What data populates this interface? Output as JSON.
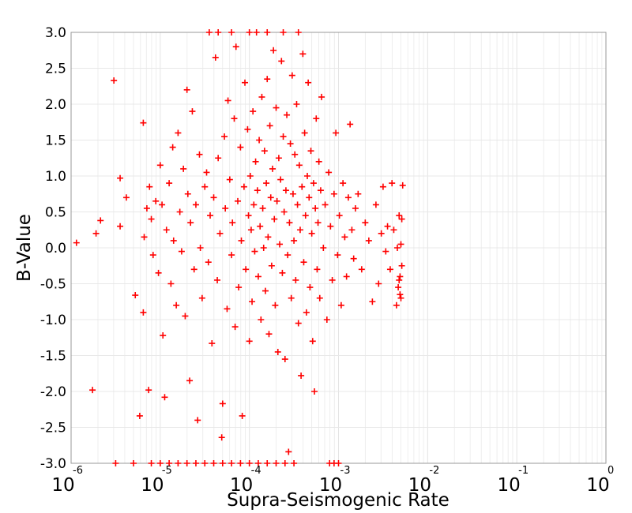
{
  "chart_data": {
    "type": "scatter",
    "title": "",
    "xlabel": "Supra-Seismogenic Rate",
    "ylabel": "B-Value",
    "xscale": "log",
    "xlim_log10": [
      -6,
      0
    ],
    "ylim": [
      -3,
      3
    ],
    "grid": true,
    "marker": "plus",
    "color": "#ff0000",
    "x_tick_exponents": [
      "-6",
      "-5",
      "-4",
      "-3",
      "-2",
      "-1",
      "0"
    ],
    "x_tick_base": "10",
    "y_ticks": [
      "-3.0",
      "-2.5",
      "-2.0",
      "-1.5",
      "-1.0",
      "-0.5",
      "0.0",
      "0.5",
      "1.0",
      "1.5",
      "2.0",
      "2.5",
      "3.0"
    ],
    "points_log10x_y": [
      [
        -5.94,
        0.07
      ],
      [
        -5.76,
        -1.98
      ],
      [
        -5.72,
        0.2
      ],
      [
        -5.67,
        0.38
      ],
      [
        -5.52,
        2.33
      ],
      [
        -5.45,
        0.97
      ],
      [
        -5.45,
        0.3
      ],
      [
        -5.38,
        0.7
      ],
      [
        -5.28,
        -0.66
      ],
      [
        -5.23,
        -2.34
      ],
      [
        -5.19,
        1.74
      ],
      [
        -5.19,
        -0.9
      ],
      [
        -5.13,
        -1.98
      ],
      [
        -5.18,
        0.15
      ],
      [
        -5.15,
        0.55
      ],
      [
        -5.12,
        0.85
      ],
      [
        -5.1,
        0.4
      ],
      [
        -5.08,
        -0.1
      ],
      [
        -5.05,
        0.65
      ],
      [
        -5.02,
        -0.35
      ],
      [
        -5.0,
        1.15
      ],
      [
        -4.98,
        0.6
      ],
      [
        -4.97,
        -1.22
      ],
      [
        -4.95,
        -2.08
      ],
      [
        -4.93,
        0.25
      ],
      [
        -4.9,
        0.9
      ],
      [
        -4.88,
        -0.5
      ],
      [
        -4.86,
        1.4
      ],
      [
        -4.85,
        0.1
      ],
      [
        -4.82,
        -0.8
      ],
      [
        -4.8,
        1.6
      ],
      [
        -4.78,
        0.5
      ],
      [
        -4.76,
        -0.05
      ],
      [
        -4.74,
        1.1
      ],
      [
        -4.72,
        -0.95
      ],
      [
        -4.7,
        2.2
      ],
      [
        -4.69,
        0.75
      ],
      [
        -4.67,
        -1.85
      ],
      [
        -4.66,
        0.35
      ],
      [
        -4.64,
        1.9
      ],
      [
        -4.62,
        -0.3
      ],
      [
        -4.6,
        0.6
      ],
      [
        -4.58,
        -2.4
      ],
      [
        -4.56,
        1.3
      ],
      [
        -4.55,
        0.0
      ],
      [
        -4.53,
        -0.7
      ],
      [
        -4.5,
        0.85
      ],
      [
        -4.48,
        1.05
      ],
      [
        -4.46,
        -0.2
      ],
      [
        -4.44,
        0.45
      ],
      [
        -4.42,
        -1.33
      ],
      [
        -4.4,
        0.7
      ],
      [
        -4.38,
        2.65
      ],
      [
        -4.36,
        -0.45
      ],
      [
        -4.35,
        1.25
      ],
      [
        -4.33,
        0.2
      ],
      [
        -4.31,
        -2.64
      ],
      [
        -4.3,
        -2.17
      ],
      [
        -4.28,
        1.55
      ],
      [
        -4.27,
        0.55
      ],
      [
        -4.25,
        -0.85
      ],
      [
        -4.24,
        2.05
      ],
      [
        -4.22,
        0.95
      ],
      [
        -4.2,
        -0.1
      ],
      [
        -4.19,
        0.35
      ],
      [
        -4.17,
        1.8
      ],
      [
        -4.16,
        -1.1
      ],
      [
        -4.15,
        2.8
      ],
      [
        -4.13,
        0.65
      ],
      [
        -4.12,
        -0.55
      ],
      [
        -4.1,
        1.4
      ],
      [
        -4.09,
        0.1
      ],
      [
        -4.08,
        -2.34
      ],
      [
        -4.06,
        0.85
      ],
      [
        -4.05,
        2.3
      ],
      [
        -4.04,
        -0.3
      ],
      [
        -4.02,
        1.65
      ],
      [
        -4.01,
        0.45
      ],
      [
        -4.0,
        -1.3
      ],
      [
        -3.99,
        1.0
      ],
      [
        -3.98,
        0.25
      ],
      [
        -3.97,
        -0.75
      ],
      [
        -3.96,
        1.9
      ],
      [
        -3.95,
        0.6
      ],
      [
        -3.94,
        -0.05
      ],
      [
        -3.93,
        1.2
      ],
      [
        -3.92,
        3.0
      ],
      [
        -3.91,
        0.8
      ],
      [
        -3.9,
        -0.4
      ],
      [
        -3.89,
        1.5
      ],
      [
        -3.88,
        0.3
      ],
      [
        -3.87,
        -1.0
      ],
      [
        -3.86,
        2.1
      ],
      [
        -3.85,
        0.55
      ],
      [
        -3.84,
        0.0
      ],
      [
        -3.83,
        1.35
      ],
      [
        -3.82,
        -0.6
      ],
      [
        -3.81,
        0.9
      ],
      [
        -3.8,
        2.35
      ],
      [
        -3.79,
        0.15
      ],
      [
        -3.78,
        -1.2
      ],
      [
        -3.77,
        1.7
      ],
      [
        -3.76,
        0.7
      ],
      [
        -3.75,
        -0.25
      ],
      [
        -3.74,
        1.1
      ],
      [
        -3.73,
        2.75
      ],
      [
        -3.72,
        0.4
      ],
      [
        -3.71,
        -0.8
      ],
      [
        -3.7,
        1.95
      ],
      [
        -3.69,
        0.65
      ],
      [
        -3.68,
        -1.45
      ],
      [
        -3.67,
        1.25
      ],
      [
        -3.66,
        0.05
      ],
      [
        -3.65,
        0.95
      ],
      [
        -3.64,
        2.6
      ],
      [
        -3.63,
        -0.35
      ],
      [
        -3.62,
        1.55
      ],
      [
        -3.61,
        0.5
      ],
      [
        -3.6,
        -1.55
      ],
      [
        -3.59,
        0.8
      ],
      [
        -3.58,
        1.85
      ],
      [
        -3.57,
        -0.1
      ],
      [
        -3.56,
        -2.84
      ],
      [
        -3.55,
        0.35
      ],
      [
        -3.54,
        1.45
      ],
      [
        -3.53,
        -0.7
      ],
      [
        -3.52,
        2.4
      ],
      [
        -3.51,
        0.75
      ],
      [
        -3.5,
        0.1
      ],
      [
        -3.49,
        1.3
      ],
      [
        -3.48,
        -0.45
      ],
      [
        -3.47,
        2.0
      ],
      [
        -3.46,
        0.6
      ],
      [
        -3.45,
        -1.05
      ],
      [
        -3.44,
        1.15
      ],
      [
        -3.43,
        0.25
      ],
      [
        -3.42,
        -1.78
      ],
      [
        -3.41,
        0.85
      ],
      [
        -3.4,
        2.7
      ],
      [
        -3.39,
        -0.2
      ],
      [
        -3.38,
        1.6
      ],
      [
        -3.37,
        0.45
      ],
      [
        -3.36,
        -0.9
      ],
      [
        -3.35,
        1.0
      ],
      [
        -3.34,
        2.3
      ],
      [
        -3.33,
        0.7
      ],
      [
        -3.32,
        -0.55
      ],
      [
        -3.31,
        1.35
      ],
      [
        -3.3,
        0.2
      ],
      [
        -3.29,
        -1.3
      ],
      [
        -3.28,
        0.9
      ],
      [
        -3.27,
        -2.0
      ],
      [
        -3.26,
        0.55
      ],
      [
        -3.25,
        1.8
      ],
      [
        -3.24,
        -0.3
      ],
      [
        -3.23,
        0.35
      ],
      [
        -3.22,
        1.2
      ],
      [
        -3.21,
        -0.7
      ],
      [
        -3.2,
        0.8
      ],
      [
        -3.19,
        2.1
      ],
      [
        -3.17,
        0.0
      ],
      [
        -3.15,
        0.6
      ],
      [
        -3.13,
        -1.0
      ],
      [
        -3.11,
        1.05
      ],
      [
        -3.09,
        0.3
      ],
      [
        -3.07,
        -0.45
      ],
      [
        -3.05,
        0.75
      ],
      [
        -3.03,
        1.6
      ],
      [
        -3.01,
        -0.1
      ],
      [
        -2.99,
        0.45
      ],
      [
        -2.97,
        -0.8
      ],
      [
        -2.95,
        0.9
      ],
      [
        -2.93,
        0.15
      ],
      [
        -2.91,
        -0.4
      ],
      [
        -2.89,
        0.7
      ],
      [
        -2.87,
        1.72
      ],
      [
        -2.85,
        0.25
      ],
      [
        -2.83,
        -0.15
      ],
      [
        -2.81,
        0.55
      ],
      [
        -2.78,
        0.75
      ],
      [
        -2.74,
        -0.3
      ],
      [
        -2.7,
        0.35
      ],
      [
        -2.66,
        0.1
      ],
      [
        -2.62,
        -0.75
      ],
      [
        -2.58,
        0.6
      ],
      [
        -2.55,
        -0.5
      ],
      [
        -2.52,
        0.2
      ],
      [
        -2.5,
        0.85
      ],
      [
        -2.47,
        -0.05
      ],
      [
        -2.45,
        0.3
      ],
      [
        -2.42,
        -0.3
      ],
      [
        -2.4,
        0.9
      ],
      [
        -2.38,
        0.25
      ],
      [
        -2.35,
        -0.8
      ],
      [
        -2.33,
        -0.55
      ],
      [
        -2.32,
        0.45
      ],
      [
        -2.31,
        -0.65
      ],
      [
        -2.3,
        0.05
      ],
      [
        -2.29,
        -0.25
      ],
      [
        -2.28,
        0.87
      ],
      [
        -2.3,
        -0.7
      ],
      [
        -2.32,
        -0.45
      ],
      [
        -2.34,
        0.0
      ],
      [
        -2.31,
        -0.4
      ],
      [
        -2.29,
        0.4
      ],
      [
        -5.5,
        -3.0
      ],
      [
        -5.3,
        -3.0
      ],
      [
        -5.1,
        -3.0
      ],
      [
        -5.0,
        -3.0
      ],
      [
        -4.9,
        -3.0
      ],
      [
        -4.8,
        -3.0
      ],
      [
        -4.7,
        -3.0
      ],
      [
        -4.6,
        -3.0
      ],
      [
        -4.5,
        -3.0
      ],
      [
        -4.4,
        -3.0
      ],
      [
        -4.3,
        -3.0
      ],
      [
        -4.2,
        -3.0
      ],
      [
        -4.1,
        -3.0
      ],
      [
        -4.0,
        -3.0
      ],
      [
        -3.9,
        -3.0
      ],
      [
        -3.8,
        -3.0
      ],
      [
        -3.7,
        -3.0
      ],
      [
        -3.6,
        -3.0
      ],
      [
        -3.5,
        -3.0
      ],
      [
        -3.1,
        -3.0
      ],
      [
        -3.05,
        -3.0
      ],
      [
        -3.0,
        -3.0
      ],
      [
        -4.45,
        3.0
      ],
      [
        -4.35,
        3.0
      ],
      [
        -4.2,
        3.0
      ],
      [
        -4.0,
        3.0
      ],
      [
        -3.8,
        3.0
      ],
      [
        -3.62,
        3.0
      ],
      [
        -3.45,
        3.0
      ]
    ]
  }
}
